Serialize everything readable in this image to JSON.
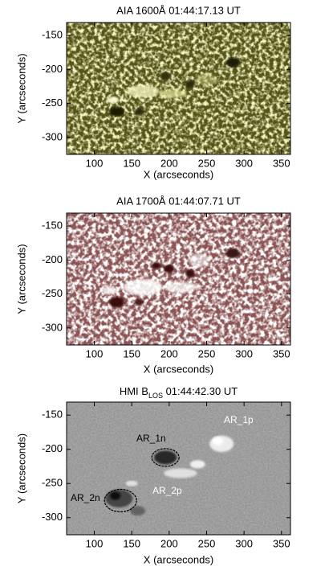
{
  "chart_data": [
    {
      "type": "image",
      "title": "AIA 1600Å 01:44:17.13 UT",
      "xlabel": "X (arcseconds)",
      "ylabel": "Y (arcseconds)",
      "xlim": [
        63,
        362
      ],
      "ylim": [
        -325,
        -131
      ],
      "xticks": [
        100,
        150,
        200,
        250,
        300,
        350
      ],
      "yticks": [
        -150,
        -200,
        -250,
        -300
      ],
      "colormap": "olive"
    },
    {
      "type": "image",
      "title": "AIA 1700Å 01:44:07.71 UT",
      "xlabel": "X (arcseconds)",
      "ylabel": "Y (arcseconds)",
      "xlim": [
        63,
        362
      ],
      "ylim": [
        -325,
        -131
      ],
      "xticks": [
        100,
        150,
        200,
        250,
        300,
        350
      ],
      "yticks": [
        -150,
        -200,
        -250,
        -300
      ],
      "colormap": "red"
    },
    {
      "type": "image",
      "title": [
        "HMI B",
        "LOS",
        " 01:44:42.30 UT"
      ],
      "xlabel": "X (arcseconds)",
      "ylabel": "Y (arcseconds)",
      "xlim": [
        63,
        362
      ],
      "ylim": [
        -325,
        -131
      ],
      "xticks": [
        100,
        150,
        200,
        250,
        300,
        350
      ],
      "yticks": [
        -150,
        -200,
        -250,
        -300
      ],
      "colormap": "gray",
      "annotations": [
        "AR_1p",
        "AR_1n",
        "AR_2p",
        "AR_2n"
      ]
    }
  ]
}
